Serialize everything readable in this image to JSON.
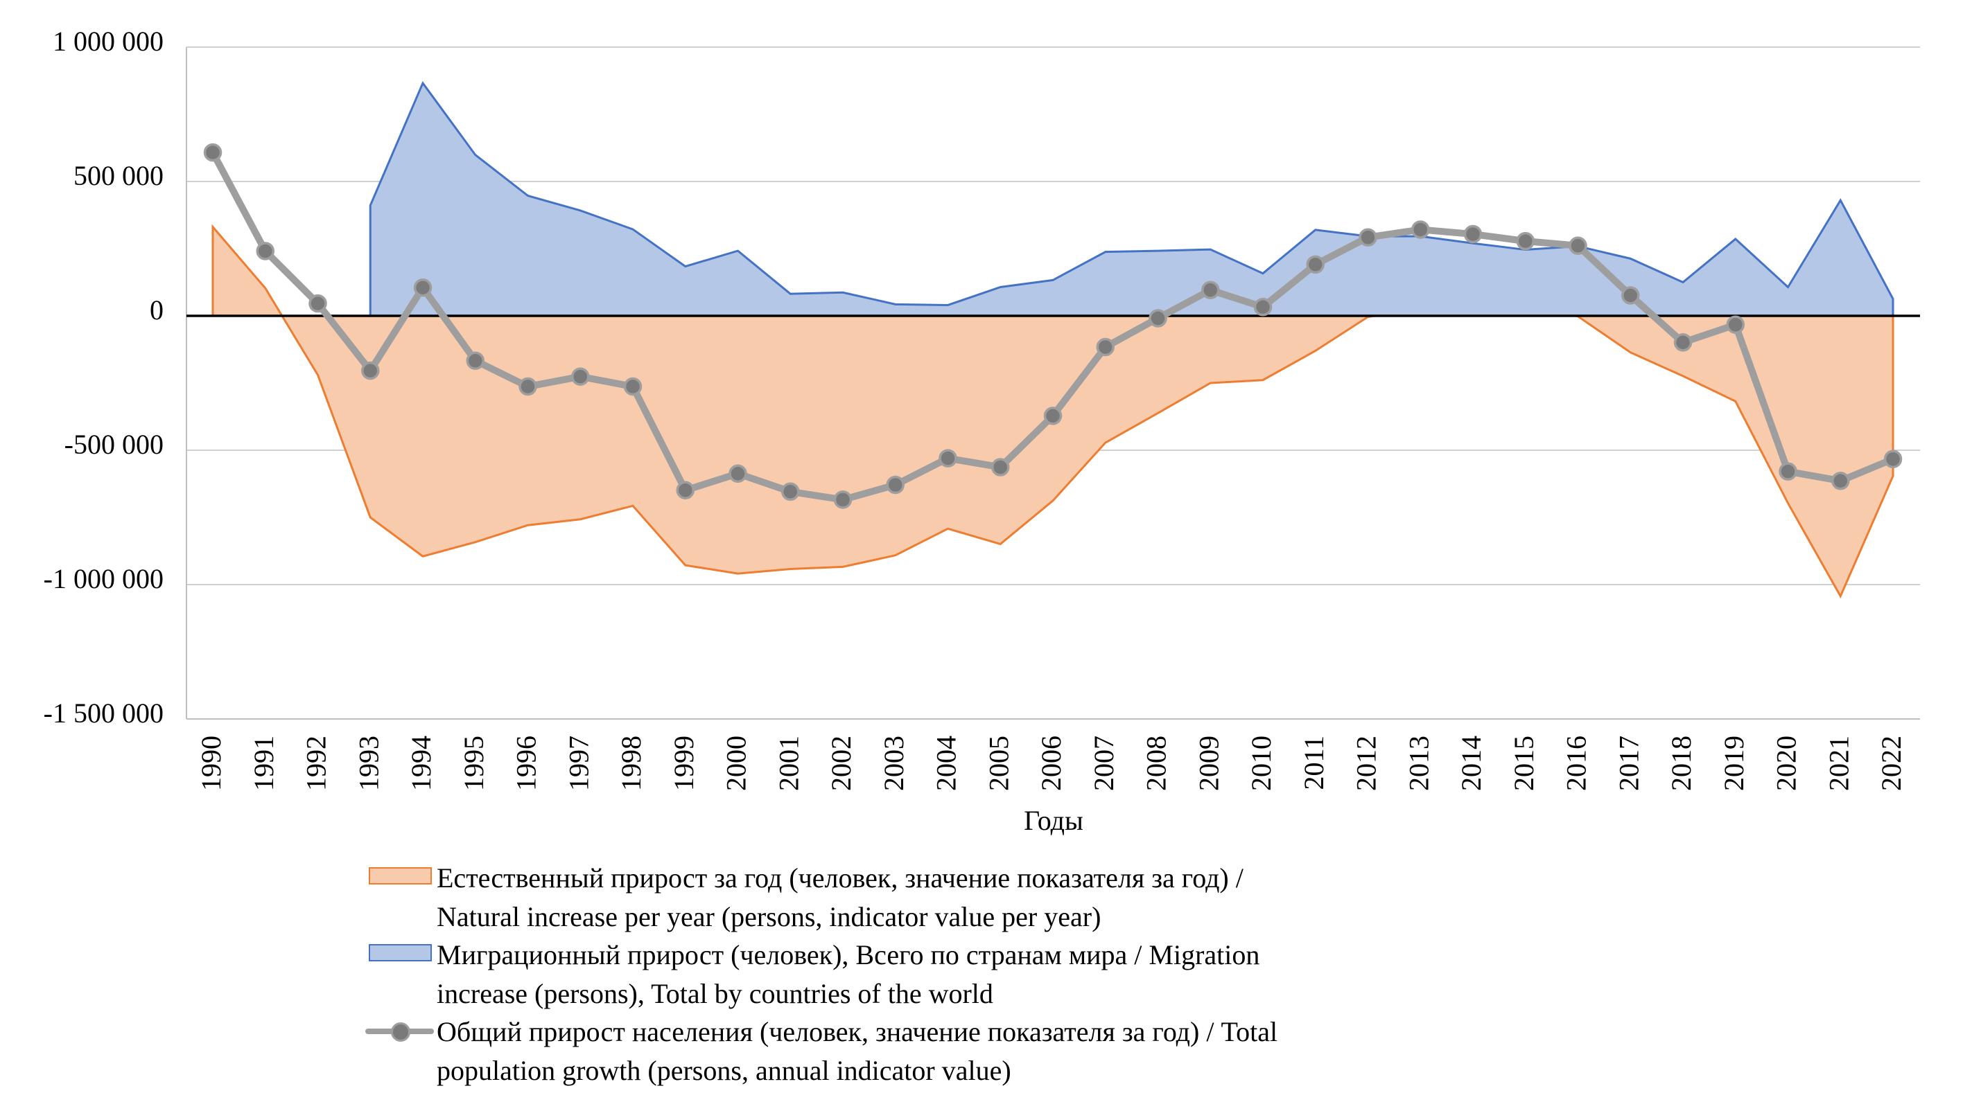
{
  "chart_data": {
    "type": "area",
    "title": "",
    "xlabel": "Годы",
    "ylabel": "",
    "ylim": [
      -1500000,
      1000000
    ],
    "yticks": [
      1000000,
      500000,
      0,
      -500000,
      -1000000,
      -1500000
    ],
    "ytick_labels": [
      "1 000 000",
      "500 000",
      "0",
      "-500 000",
      "-1 000 000",
      "-1 500 000"
    ],
    "grid": true,
    "legend_position": "bottom",
    "categories": [
      "1990",
      "1991",
      "1992",
      "1993",
      "1994",
      "1995",
      "1996",
      "1997",
      "1998",
      "1999",
      "2000",
      "2001",
      "2002",
      "2003",
      "2004",
      "2005",
      "2006",
      "2007",
      "2008",
      "2009",
      "2010",
      "2011",
      "2012",
      "2013",
      "2014",
      "2015",
      "2016",
      "2017",
      "2018",
      "2019",
      "2020",
      "2021",
      "2022"
    ],
    "series": [
      {
        "name": "Естественный прирост за год (человек, значение показателя за год) / Natural increase per year (persons, indicator value per year)",
        "kind": "area",
        "color_fill": "#F8CBAD",
        "color_line": "#ED7D31",
        "values": [
          331000,
          103000,
          -220000,
          -750000,
          -895000,
          -842000,
          -779000,
          -757000,
          -707000,
          -928000,
          -959000,
          -942000,
          -934000,
          -891000,
          -792000,
          -849000,
          -688000,
          -472000,
          -362000,
          -250000,
          -239000,
          -130000,
          -4000,
          24000,
          30000,
          32000,
          -2000,
          -136000,
          -224000,
          -318000,
          -697000,
          -1043000,
          -596000
        ]
      },
      {
        "name": "Миграционный прирост (человек), Всего по странам мира / Migration increase (persons), Total by countries of the world",
        "kind": "area",
        "color_fill": "#B4C7E7",
        "color_line": "#4472C4",
        "values": [
          null,
          null,
          null,
          411000,
          866000,
          599000,
          447000,
          392000,
          322000,
          184000,
          242000,
          82000,
          87000,
          43000,
          40000,
          107000,
          133000,
          238000,
          242000,
          247000,
          158000,
          320000,
          296000,
          296000,
          270000,
          246000,
          259000,
          213000,
          125000,
          286000,
          107000,
          430000,
          63000
        ]
      },
      {
        "name": "Общий прирост населения (человек, значение показателя за год) / Total population growth (persons, annual indicator value)",
        "kind": "line",
        "color_line": "#9E9E9E",
        "color_marker": "#7A7A7A",
        "values": [
          608000,
          241000,
          46000,
          -204000,
          105000,
          -167000,
          -263000,
          -226000,
          -263000,
          -649000,
          -587000,
          -654000,
          -684000,
          -629000,
          -530000,
          -563000,
          -372000,
          -116000,
          -9000,
          96000,
          33000,
          191000,
          292000,
          321000,
          304000,
          278000,
          261000,
          76000,
          -99000,
          -33000,
          -579000,
          -614000,
          -533000
        ]
      }
    ]
  },
  "legend": {
    "items": [
      {
        "lines": [
          "Естественный прирост за год (человек, значение показателя за год) /",
          "Natural increase per year (persons, indicator value per year)"
        ]
      },
      {
        "lines": [
          "Миграционный прирост (человек), Всего по странам мира / Migration",
          "increase (persons), Total by countries of the world"
        ]
      },
      {
        "lines": [
          "Общий прирост населения (человек, значение показателя за год) / Total",
          "population growth (persons, annual indicator value)"
        ]
      }
    ]
  }
}
